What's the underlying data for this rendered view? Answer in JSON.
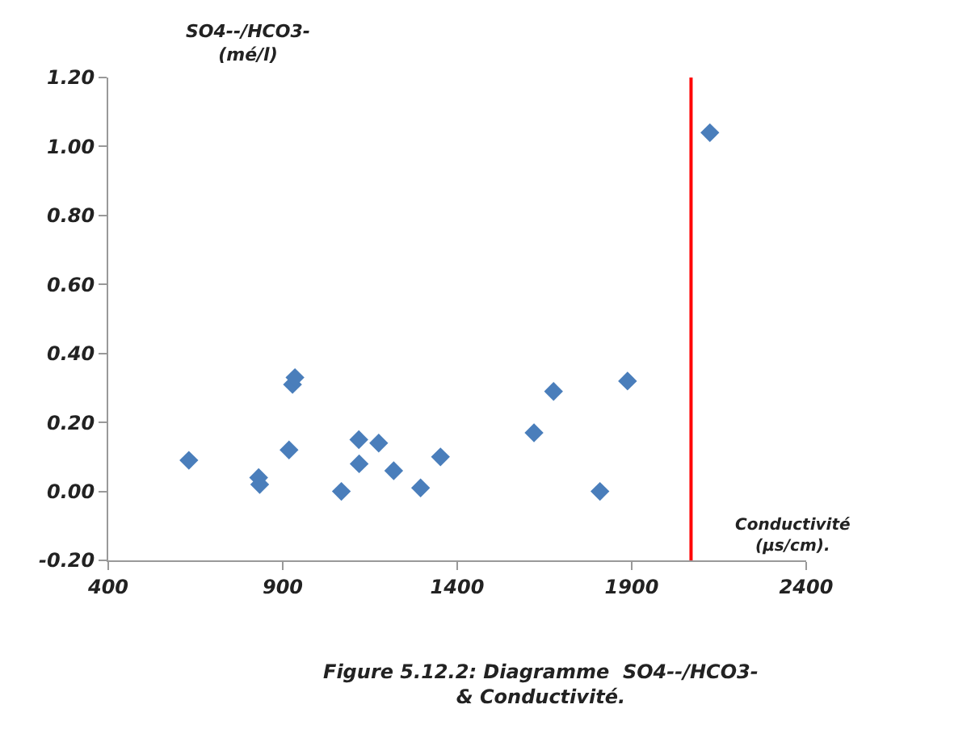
{
  "chart_data": {
    "type": "scatter",
    "xlabel": "Conductivité (µs/cm).",
    "ylabel": "SO4--/HCO3- (mé/l)",
    "x": [
      631,
      831,
      834,
      918,
      928,
      935,
      1068,
      1118,
      1119,
      1175,
      1218,
      1295,
      1352,
      1620,
      1676,
      1809,
      1888,
      2124
    ],
    "values": [
      0.09,
      0.04,
      0.02,
      0.12,
      0.31,
      0.33,
      0.0,
      0.15,
      0.08,
      0.14,
      0.06,
      0.01,
      0.1,
      0.17,
      0.29,
      0.0,
      0.32,
      1.04
    ],
    "color": "#4a7ebb",
    "marker": "diamond",
    "xlim": [
      400,
      2400
    ],
    "xticks": [
      400,
      900,
      1400,
      1900,
      2400
    ],
    "ylim": [
      -0.2,
      1.2
    ],
    "yticks": [
      {
        "value": -0.2,
        "label": "-0.20"
      },
      {
        "value": 0,
        "label": "0.00"
      },
      {
        "value": 0.2,
        "label": "0.20"
      },
      {
        "value": 0.4,
        "label": "0.40"
      },
      {
        "value": 0.6,
        "label": "0.60"
      },
      {
        "value": 0.8,
        "label": "0.80"
      },
      {
        "value": 1.0,
        "label": "1.00"
      },
      {
        "value": 1.2,
        "label": "1.20"
      }
    ],
    "ref_lines": [
      {
        "axis": "x",
        "value": 2070,
        "color": "#ff0000"
      }
    ],
    "annotations": [
      "Figure 5.12.2: Diagramme  SO4--/HCO3- & Conductivité."
    ],
    "grid": false
  }
}
